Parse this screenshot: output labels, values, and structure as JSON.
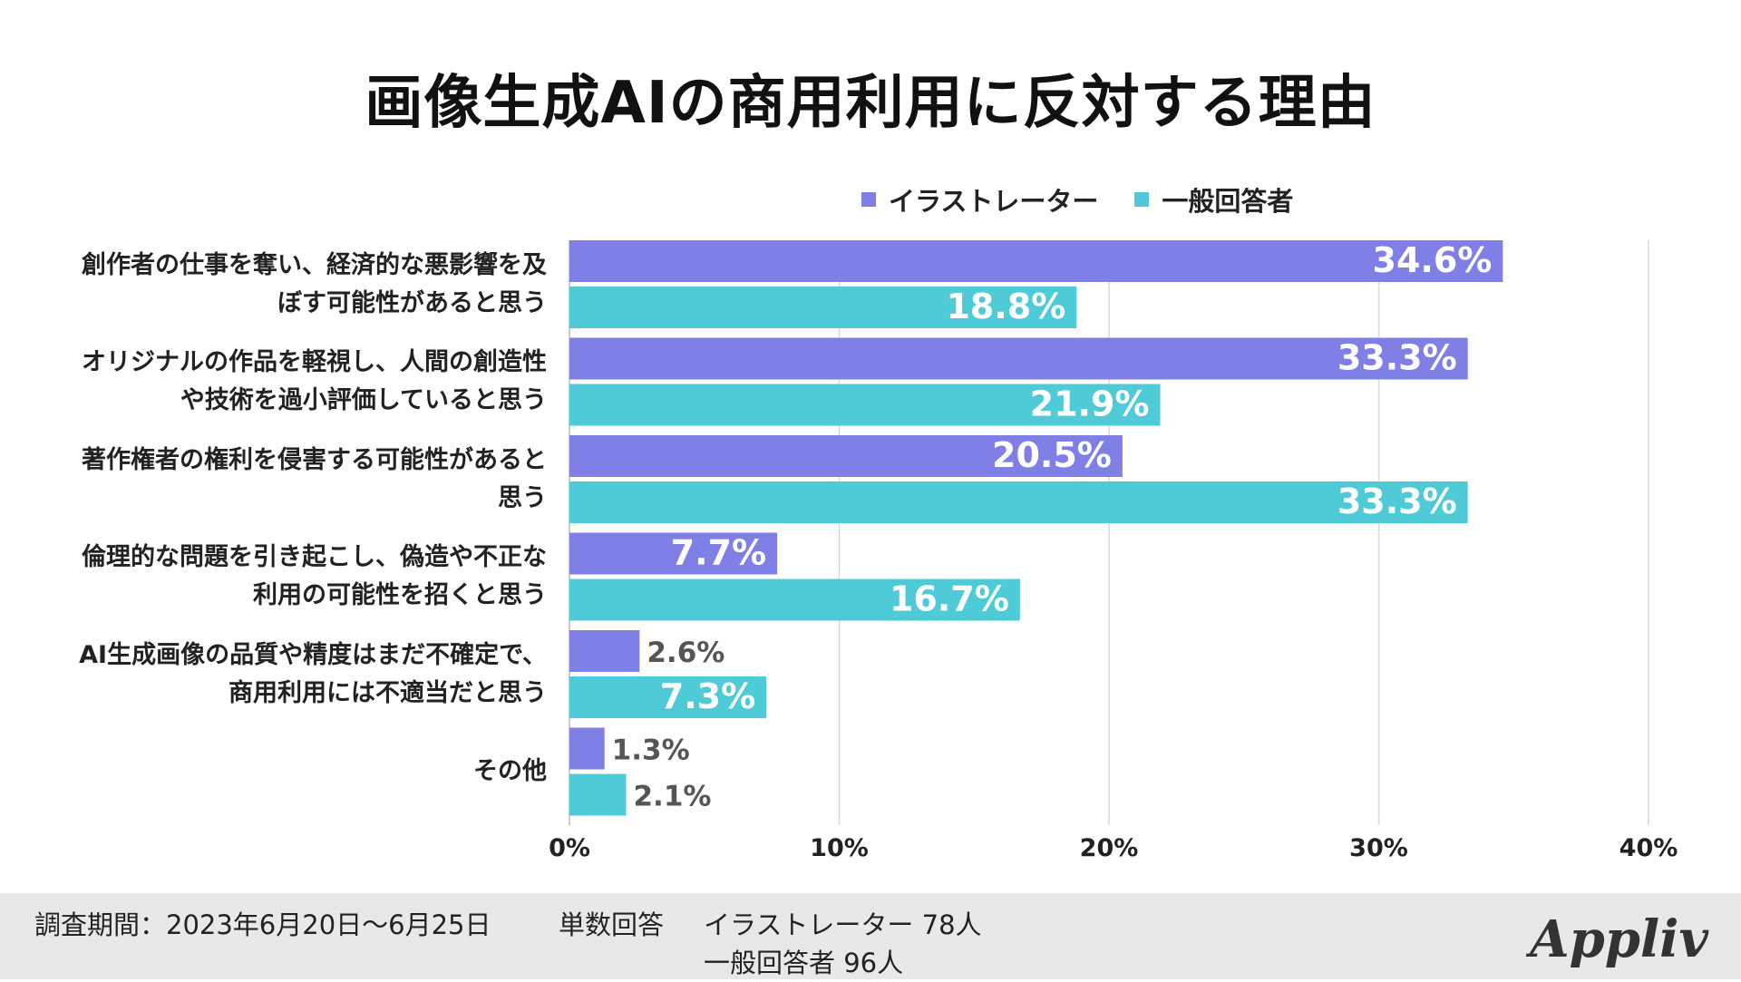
{
  "chart_data": {
    "type": "bar",
    "orientation": "horizontal",
    "title": "画像生成AIの商用利用に反対する理由",
    "categories": [
      [
        "創作者の仕事を奪い、経済的な悪影響を及",
        "ぼす可能性があると思う"
      ],
      [
        "オリジナルの作品を軽視し、人間の創造性",
        "や技術を過小評価していると思う"
      ],
      [
        "著作権者の権利を侵害する可能性があると",
        "思う"
      ],
      [
        "倫理的な問題を引き起こし、偽造や不正な",
        "利用の可能性を招くと思う"
      ],
      [
        "AI生成画像の品質や精度はまだ不確定で、",
        "商用利用には不適当だと思う"
      ],
      [
        "その他"
      ]
    ],
    "series": [
      {
        "name": "イラストレーター",
        "color": "#7f7fe6",
        "values": [
          34.6,
          33.3,
          20.5,
          7.7,
          2.6,
          1.3
        ],
        "labels": [
          "34.6%",
          "33.3%",
          "20.5%",
          "7.7%",
          "2.6%",
          "1.3%"
        ]
      },
      {
        "name": "一般回答者",
        "color": "#4ecbd6",
        "values": [
          18.8,
          21.9,
          33.3,
          16.7,
          7.3,
          2.1
        ],
        "labels": [
          "18.8%",
          "21.9%",
          "33.3%",
          "16.7%",
          "7.3%",
          "2.1%"
        ]
      }
    ],
    "xlim": [
      0,
      40
    ],
    "xticks": [
      0,
      10,
      20,
      30,
      40
    ],
    "xtick_labels": [
      "0%",
      "10%",
      "20%",
      "30%",
      "40%"
    ],
    "grid": true,
    "legend_position": "top-right"
  },
  "footer": {
    "survey_period": "調査期間：2023年6月20日〜6月25日",
    "answer_type": "単数回答",
    "group1": "イラストレーター 78人",
    "group2": "一般回答者 96人"
  },
  "logo": "Appliv"
}
